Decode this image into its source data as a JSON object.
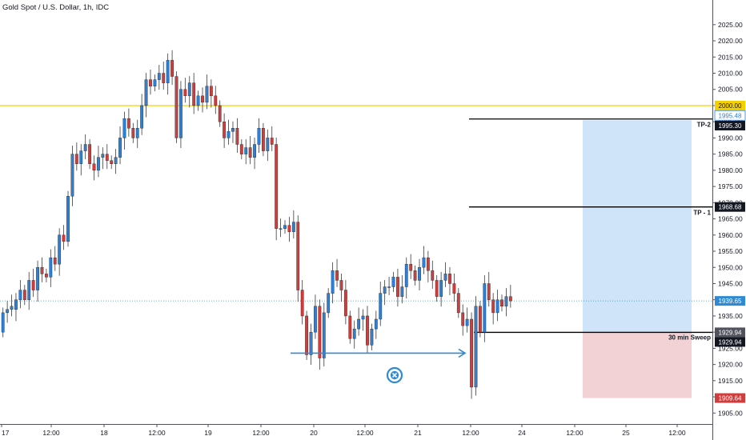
{
  "header": {
    "title": "Gold Spot / U.S. Dollar, 1h, IDC"
  },
  "colors": {
    "up": "#2f7fd4",
    "down": "#d13c3c",
    "resistance": "#f5d000",
    "profit_zone": "#cfe4f8",
    "stop_zone": "#f2d2d4",
    "arrow": "#2f8ad6",
    "current_price": "#2f8ad6"
  },
  "chart_data": {
    "type": "candlestick",
    "title": "Gold Spot / U.S. Dollar, 1h, IDC",
    "ylim": [
      1901,
      2032
    ],
    "y_ticks": [
      "1905.00",
      "1910.00",
      "1915.00",
      "1920.00",
      "1925.00",
      "1930.00",
      "1935.00",
      "1940.00",
      "1945.00",
      "1950.00",
      "1955.00",
      "1960.00",
      "1965.00",
      "1970.00",
      "1975.00",
      "1980.00",
      "1985.00",
      "1990.00",
      "1995.00",
      "2000.00",
      "2005.00",
      "2010.00",
      "2015.00",
      "2020.00",
      "2025.00"
    ],
    "x_ticks": [
      "17",
      "12:00",
      "18",
      "12:00",
      "19",
      "12:00",
      "20",
      "12:00",
      "21",
      "12:00",
      "24",
      "12:00",
      "25",
      "12:00"
    ],
    "candles": [
      [
        1930,
        1936
      ],
      [
        1936,
        1937
      ],
      [
        1937,
        1938
      ],
      [
        1937,
        1940
      ],
      [
        1940,
        1943
      ],
      [
        1943,
        1940
      ],
      [
        1940,
        1946
      ],
      [
        1946,
        1943
      ],
      [
        1943,
        1950
      ],
      [
        1950,
        1948
      ],
      [
        1948,
        1947
      ],
      [
        1947,
        1953
      ],
      [
        1953,
        1951
      ],
      [
        1951,
        1960
      ],
      [
        1960,
        1958
      ],
      [
        1958,
        1972
      ],
      [
        1972,
        1985
      ],
      [
        1985,
        1982
      ],
      [
        1982,
        1986
      ],
      [
        1986,
        1988
      ],
      [
        1988,
        1982
      ],
      [
        1982,
        1980
      ],
      [
        1980,
        1984
      ],
      [
        1984,
        1985
      ],
      [
        1985,
        1983
      ],
      [
        1983,
        1982
      ],
      [
        1982,
        1984
      ],
      [
        1984,
        1990
      ],
      [
        1990,
        1996
      ],
      [
        1996,
        1993
      ],
      [
        1993,
        1990
      ],
      [
        1990,
        1993
      ],
      [
        1993,
        2000
      ],
      [
        2000,
        2008
      ],
      [
        2008,
        2006
      ],
      [
        2006,
        2008
      ],
      [
        2008,
        2010
      ],
      [
        2010,
        2007
      ],
      [
        2007,
        2014
      ],
      [
        2014,
        2009
      ],
      [
        2009,
        1990
      ],
      [
        1990,
        2005
      ],
      [
        2005,
        2003
      ],
      [
        2003,
        2007
      ],
      [
        2007,
        2000
      ],
      [
        2000,
        2003
      ],
      [
        2003,
        2001
      ],
      [
        2001,
        2006
      ],
      [
        2006,
        2003
      ],
      [
        2003,
        2000
      ],
      [
        2000,
        1995
      ],
      [
        1995,
        1990
      ],
      [
        1990,
        1992
      ],
      [
        1992,
        1993
      ],
      [
        1993,
        1988
      ],
      [
        1988,
        1985
      ],
      [
        1985,
        1987
      ],
      [
        1987,
        1984
      ],
      [
        1984,
        1988
      ],
      [
        1988,
        1993
      ],
      [
        1993,
        1986
      ],
      [
        1986,
        1990
      ],
      [
        1990,
        1988
      ],
      [
        1988,
        1962
      ],
      [
        1962,
        1962
      ],
      [
        1962,
        1963
      ],
      [
        1963,
        1961
      ],
      [
        1961,
        1964
      ],
      [
        1964,
        1943
      ],
      [
        1943,
        1935
      ],
      [
        1935,
        1923
      ],
      [
        1923,
        1930
      ],
      [
        1930,
        1938
      ],
      [
        1938,
        1922
      ],
      [
        1922,
        1936
      ],
      [
        1936,
        1942
      ],
      [
        1942,
        1949
      ],
      [
        1949,
        1946
      ],
      [
        1946,
        1943
      ],
      [
        1943,
        1935
      ],
      [
        1935,
        1928
      ],
      [
        1928,
        1931
      ],
      [
        1931,
        1934
      ],
      [
        1934,
        1935
      ],
      [
        1935,
        1926
      ],
      [
        1926,
        1931
      ],
      [
        1931,
        1934
      ],
      [
        1934,
        1942
      ],
      [
        1942,
        1944
      ],
      [
        1944,
        1944
      ],
      [
        1944,
        1947
      ],
      [
        1947,
        1941
      ],
      [
        1941,
        1944
      ],
      [
        1944,
        1951
      ],
      [
        1951,
        1949
      ],
      [
        1949,
        1946
      ],
      [
        1946,
        1950
      ],
      [
        1950,
        1953
      ],
      [
        1953,
        1949
      ],
      [
        1949,
        1946
      ],
      [
        1946,
        1941
      ],
      [
        1941,
        1946
      ],
      [
        1946,
        1948
      ],
      [
        1948,
        1945
      ],
      [
        1945,
        1942
      ],
      [
        1942,
        1936
      ],
      [
        1936,
        1932
      ],
      [
        1932,
        1934
      ],
      [
        1934,
        1913
      ],
      [
        1913,
        1938
      ],
      [
        1938,
        1930
      ],
      [
        1930,
        1945
      ],
      [
        1945,
        1940
      ],
      [
        1940,
        1936
      ],
      [
        1936,
        1940
      ],
      [
        1940,
        1938
      ],
      [
        1938,
        1941
      ],
      [
        1941,
        1939.65
      ]
    ],
    "levels": {
      "resistance": 2000.0,
      "tp2": 1995.48,
      "tp2_alt": 1995.3,
      "tp1": 1968.68,
      "current": 1939.65,
      "sweep": 1929.94,
      "stop": 1909.64
    },
    "level_labels": [
      "2000.00",
      "1995.48",
      "1995.30",
      "1968.68",
      "1939.65",
      "1929.94",
      "1929.94",
      "1909.64"
    ],
    "annotations": {
      "tp2": "TP-2",
      "tp1": "TP - 1",
      "sweep": "30 min Sweep"
    }
  }
}
